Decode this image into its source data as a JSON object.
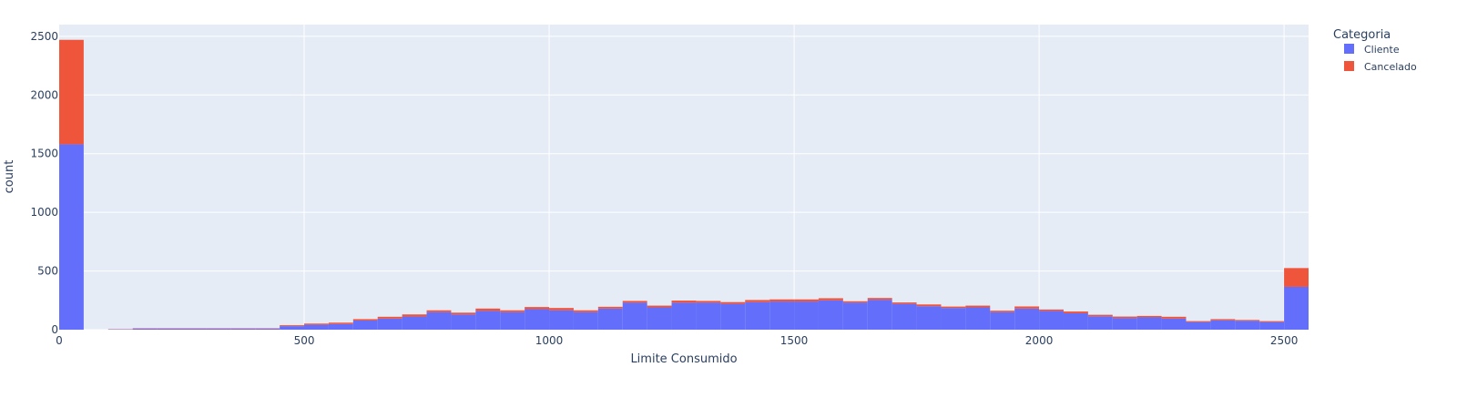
{
  "chart_data": {
    "type": "bar",
    "stacked": true,
    "xlabel": "Limite Consumido",
    "ylabel": "count",
    "xlim": [
      0,
      2550
    ],
    "ylim": [
      0,
      2600
    ],
    "x_ticks": [
      0,
      500,
      1000,
      1500,
      2000,
      2500
    ],
    "y_ticks": [
      0,
      500,
      1000,
      1500,
      2000,
      2500
    ],
    "grid": true,
    "plot_background": "#e5ecf6",
    "legend": {
      "title": "Categoria",
      "position": "top-right"
    },
    "bin_width": 50,
    "bin_starts": [
      0,
      100,
      150,
      200,
      250,
      300,
      350,
      400,
      450,
      500,
      550,
      600,
      650,
      700,
      750,
      800,
      850,
      900,
      950,
      1000,
      1050,
      1100,
      1150,
      1200,
      1250,
      1300,
      1350,
      1400,
      1450,
      1500,
      1550,
      1600,
      1650,
      1700,
      1750,
      1800,
      1850,
      1900,
      1950,
      2000,
      2050,
      2100,
      2150,
      2200,
      2250,
      2300,
      2350,
      2400,
      2450,
      2500
    ],
    "series": [
      {
        "name": "Cliente",
        "color": "#636efa",
        "values": [
          1580,
          3,
          8,
          8,
          8,
          8,
          8,
          8,
          30,
          42,
          48,
          78,
          95,
          112,
          150,
          130,
          160,
          150,
          175,
          165,
          150,
          180,
          230,
          190,
          230,
          230,
          220,
          235,
          240,
          240,
          250,
          230,
          255,
          220,
          200,
          185,
          190,
          150,
          180,
          160,
          140,
          115,
          100,
          105,
          95,
          65,
          80,
          75,
          65,
          365
        ]
      },
      {
        "name": "Cancelado",
        "color": "#ef553b",
        "values": [
          890,
          2,
          4,
          4,
          4,
          4,
          4,
          4,
          8,
          10,
          12,
          12,
          15,
          18,
          15,
          15,
          20,
          15,
          18,
          20,
          15,
          15,
          15,
          15,
          18,
          15,
          15,
          18,
          18,
          18,
          18,
          12,
          15,
          12,
          15,
          12,
          15,
          12,
          18,
          12,
          15,
          12,
          12,
          12,
          15,
          8,
          10,
          8,
          8,
          160
        ]
      }
    ]
  }
}
